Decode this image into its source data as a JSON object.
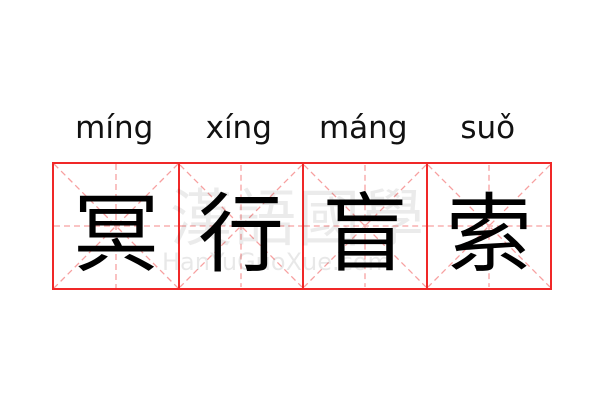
{
  "pinyin": [
    "míng",
    "xíng",
    "máng",
    "suǒ"
  ],
  "characters": [
    "冥",
    "行",
    "盲",
    "索"
  ],
  "watermark": {
    "logo": "漢語國學",
    "url": "HanYuGuoXue.com"
  },
  "colors": {
    "grid_border": "#f02828",
    "guide_lines": "#f7a0a0",
    "text": "#000000"
  }
}
